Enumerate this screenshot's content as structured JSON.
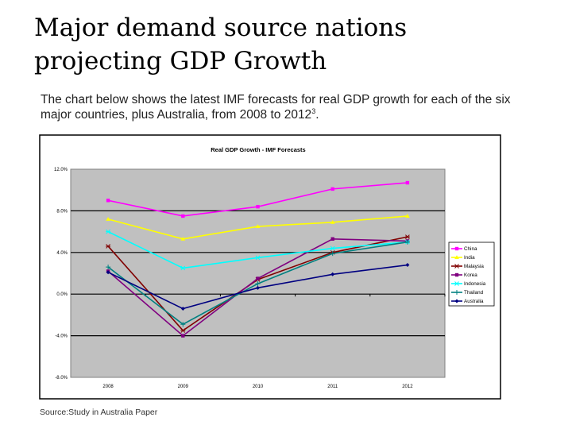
{
  "slide": {
    "title_line1": "Major demand source nations",
    "title_line2": "projecting GDP Growth",
    "intro": "The chart below shows the latest IMF forecasts for real GDP growth for each of the six major countries, plus Australia, from 2008 to 2012",
    "intro_footnote": "3",
    "intro_end": ".",
    "source": "Source:Study in Australia Paper"
  },
  "chart_data": {
    "type": "line",
    "title": "Real GDP Growth - IMF Forecasts",
    "categories": [
      "2008",
      "2009",
      "2010",
      "2011",
      "2012"
    ],
    "ylim": [
      -8,
      12
    ],
    "yticks": [
      "12.0%",
      "8.0%",
      "4.0%",
      "0.0%",
      "-4.0%",
      "-8.0%"
    ],
    "ytick_values": [
      12,
      8,
      4,
      0,
      -4,
      -8
    ],
    "grid": true,
    "plot_background": "#c0c0c0",
    "legend_position": "right",
    "series": [
      {
        "name": "China",
        "color": "#ff00ff",
        "marker": "square",
        "values": [
          9.0,
          7.5,
          8.4,
          10.1,
          10.7
        ]
      },
      {
        "name": "India",
        "color": "#ffff00",
        "marker": "triangle",
        "values": [
          7.2,
          5.3,
          6.5,
          6.9,
          7.5
        ]
      },
      {
        "name": "Malaysia",
        "color": "#800000",
        "marker": "star",
        "values": [
          4.6,
          -3.5,
          1.4,
          4.0,
          5.5
        ]
      },
      {
        "name": "Korea",
        "color": "#800080",
        "marker": "square",
        "values": [
          2.2,
          -4.0,
          1.5,
          5.3,
          5.1
        ]
      },
      {
        "name": "Indonesia",
        "color": "#00ffff",
        "marker": "star",
        "values": [
          6.0,
          2.5,
          3.5,
          4.4,
          5.0
        ]
      },
      {
        "name": "Thailand",
        "color": "#008080",
        "marker": "plus",
        "values": [
          2.6,
          -2.9,
          1.0,
          3.9,
          5.0
        ]
      },
      {
        "name": "Australia",
        "color": "#000080",
        "marker": "diamond",
        "values": [
          2.1,
          -1.4,
          0.6,
          1.9,
          2.8
        ]
      }
    ]
  }
}
